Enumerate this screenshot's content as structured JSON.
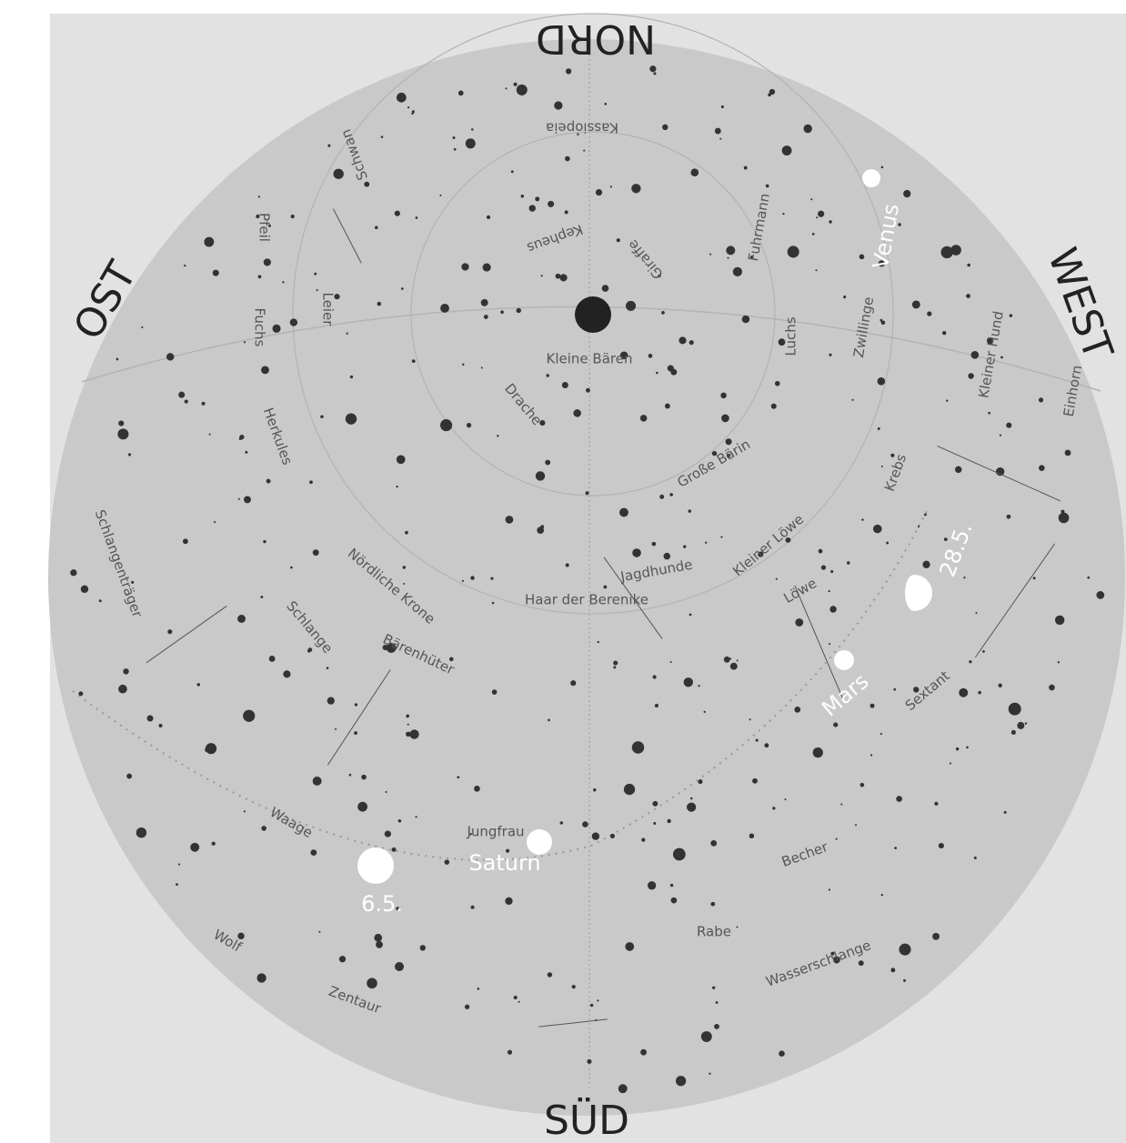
{
  "directions": {
    "north": "NORD",
    "south": "SÜD",
    "east": "OST",
    "west": "WEST"
  },
  "constellations": [
    "Kassiopeia",
    "Kepheus",
    "Giraffe",
    "Fuhrmann",
    "Kleine Bären",
    "Drache",
    "Große Bärin",
    "Luchs",
    "Zwillinge",
    "Kleiner Hund",
    "Krebs",
    "Jagdhunde",
    "Kleiner Löwe",
    "Löwe",
    "Haar der Berenike",
    "Herkules",
    "Leier",
    "Fuchs",
    "Pfeil",
    "Nördliche Krone",
    "Bärenhüter",
    "Schlange",
    "Schlangenträger",
    "Waage",
    "Jungfrau",
    "Sextant",
    "Becher",
    "Rabe",
    "Wasserschlange",
    "Wolf",
    "Zentaur",
    "Einhorn",
    "Schwan"
  ],
  "planets": [
    "Venus",
    "Mars",
    "Saturn"
  ],
  "moon_dates": [
    "28.5.",
    "6.5."
  ]
}
